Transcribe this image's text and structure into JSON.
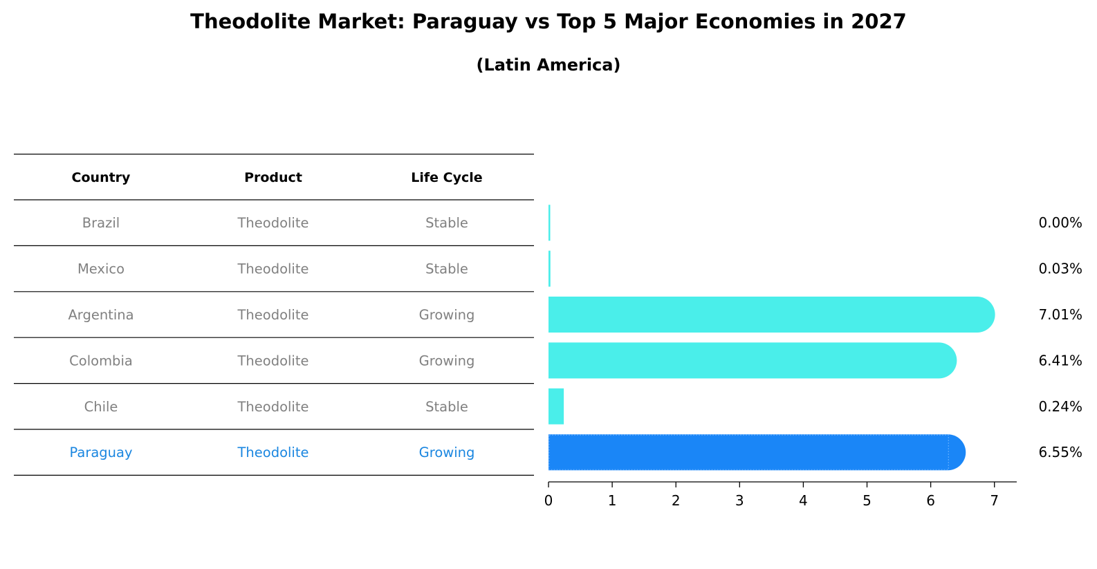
{
  "title": "Theodolite Market: Paraguay vs Top 5 Major Economies in 2027",
  "subtitle": "(Latin America)",
  "colors": {
    "bar": "#4aeeea",
    "highlight": "#1a86f7",
    "highlight_text": "#1a86e0",
    "muted_text": "#808080"
  },
  "table": {
    "headers": [
      "Country",
      "Product",
      "Life Cycle"
    ],
    "rows": [
      {
        "country": "Brazil",
        "product": "Theodolite",
        "life_cycle": "Stable"
      },
      {
        "country": "Mexico",
        "product": "Theodolite",
        "life_cycle": "Stable"
      },
      {
        "country": "Argentina",
        "product": "Theodolite",
        "life_cycle": "Growing"
      },
      {
        "country": "Colombia",
        "product": "Theodolite",
        "life_cycle": "Growing"
      },
      {
        "country": "Chile",
        "product": "Theodolite",
        "life_cycle": "Stable"
      },
      {
        "country": "Paraguay",
        "product": "Theodolite",
        "life_cycle": "Growing",
        "highlight": true
      }
    ]
  },
  "chart_data": {
    "type": "bar",
    "orientation": "horizontal",
    "categories": [
      "Brazil",
      "Mexico",
      "Argentina",
      "Colombia",
      "Chile",
      "Paraguay"
    ],
    "values": [
      0.0,
      0.03,
      7.01,
      6.41,
      0.24,
      6.55
    ],
    "labels": [
      "0.00%",
      "0.03%",
      "7.01%",
      "6.41%",
      "0.24%",
      "6.55%"
    ],
    "highlight_index": 5,
    "xlim": [
      0,
      7.35
    ],
    "xticks": [
      0,
      1,
      2,
      3,
      4,
      5,
      6,
      7
    ],
    "grid": false
  }
}
